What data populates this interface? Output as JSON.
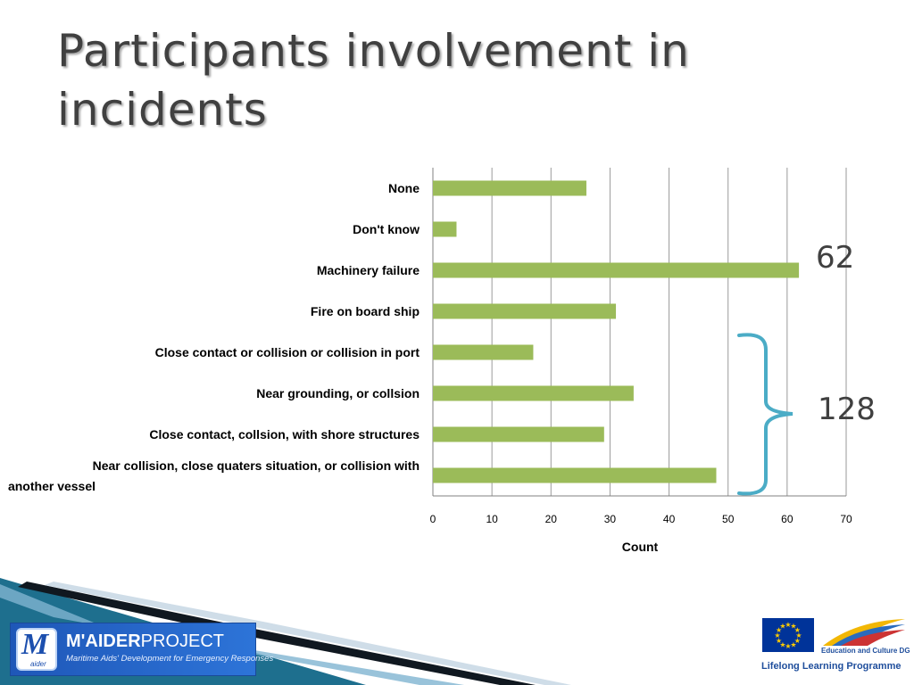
{
  "slide": {
    "title": "Participants involvement in incidents"
  },
  "chart_data": {
    "type": "bar",
    "orientation": "horizontal",
    "categories": [
      "None",
      "Don't know",
      "Machinery failure",
      "Fire on board ship",
      "Close contact or collision or collision in port",
      "Near grounding, or collsion",
      "Close contact, collsion, with shore structures",
      "Near collision, close quaters situation, or collision with another vessel"
    ],
    "values": [
      26,
      4,
      62,
      31,
      17,
      34,
      29,
      48
    ],
    "xlabel": "Count",
    "ylabel": "",
    "xlim": [
      0,
      70
    ],
    "xticks": [
      0,
      10,
      20,
      30,
      40,
      50,
      60,
      70
    ],
    "grid": "vertical",
    "bar_color": "#9bbb59",
    "annotations": [
      {
        "text": "62",
        "target": "Machinery failure"
      },
      {
        "text": "128",
        "target": "bracket",
        "bracket_color": "#4bacc6"
      }
    ]
  },
  "footer": {
    "logo_left": {
      "emblem_letter": "M",
      "emblem_sub": "aider",
      "name_bold": "M'AIDER",
      "name_rest": "PROJECT",
      "tagline": "Maritime Aids' Development for Emergency Responses"
    },
    "eu_logo": "eu-flag-icon",
    "edu_culture": "Education and Culture DG",
    "programme": "Lifelong Learning Programme"
  }
}
